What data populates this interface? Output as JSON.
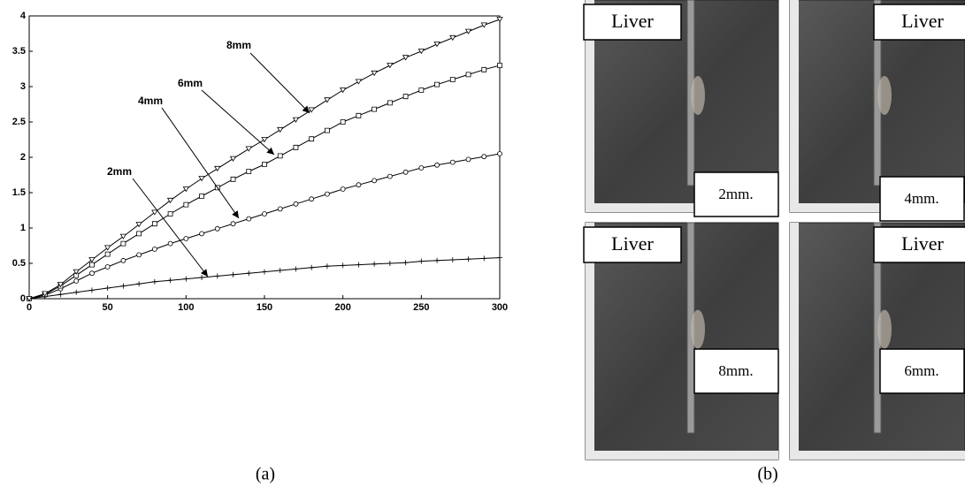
{
  "chart_data": {
    "type": "line",
    "x": [
      0,
      10,
      20,
      30,
      40,
      50,
      60,
      70,
      80,
      90,
      100,
      110,
      120,
      130,
      140,
      150,
      160,
      170,
      180,
      190,
      200,
      210,
      220,
      230,
      240,
      250,
      260,
      270,
      280,
      290,
      300
    ],
    "series": [
      {
        "name": "2mm",
        "color": "#000000",
        "marker": "plus",
        "values": [
          0,
          0.03,
          0.06,
          0.09,
          0.12,
          0.15,
          0.18,
          0.21,
          0.24,
          0.26,
          0.28,
          0.3,
          0.32,
          0.34,
          0.36,
          0.38,
          0.4,
          0.42,
          0.44,
          0.46,
          0.47,
          0.48,
          0.49,
          0.5,
          0.51,
          0.53,
          0.54,
          0.55,
          0.56,
          0.57,
          0.58
        ]
      },
      {
        "name": "4mm",
        "color": "#000000",
        "marker": "circle",
        "values": [
          0,
          0.05,
          0.14,
          0.25,
          0.36,
          0.45,
          0.54,
          0.62,
          0.7,
          0.78,
          0.85,
          0.92,
          0.99,
          1.06,
          1.13,
          1.2,
          1.27,
          1.34,
          1.41,
          1.48,
          1.55,
          1.61,
          1.67,
          1.73,
          1.79,
          1.85,
          1.89,
          1.93,
          1.97,
          2.01,
          2.05
        ]
      },
      {
        "name": "6mm",
        "color": "#000000",
        "marker": "square",
        "values": [
          0,
          0.06,
          0.18,
          0.33,
          0.48,
          0.63,
          0.78,
          0.92,
          1.06,
          1.2,
          1.33,
          1.45,
          1.57,
          1.69,
          1.8,
          1.9,
          2.02,
          2.14,
          2.26,
          2.38,
          2.5,
          2.59,
          2.68,
          2.77,
          2.86,
          2.95,
          3.03,
          3.1,
          3.17,
          3.24,
          3.3
        ]
      },
      {
        "name": "8mm",
        "color": "#000000",
        "marker": "triangle-down",
        "values": [
          0,
          0.07,
          0.2,
          0.38,
          0.55,
          0.72,
          0.88,
          1.05,
          1.22,
          1.39,
          1.55,
          1.7,
          1.84,
          1.98,
          2.12,
          2.25,
          2.39,
          2.53,
          2.67,
          2.81,
          2.95,
          3.07,
          3.19,
          3.3,
          3.41,
          3.5,
          3.6,
          3.69,
          3.78,
          3.87,
          3.95
        ]
      }
    ],
    "xlim": [
      0,
      300
    ],
    "ylim": [
      0,
      4
    ],
    "xticks": [
      0,
      50,
      100,
      150,
      200,
      250,
      300
    ],
    "yticks": [
      0,
      0.5,
      1,
      1.5,
      2,
      2.5,
      3,
      3.5,
      4
    ]
  },
  "photos": [
    {
      "organ": "Liver",
      "size": "2mm."
    },
    {
      "organ": "Liver",
      "size": "4mm."
    },
    {
      "organ": "Liver",
      "size": "8mm."
    },
    {
      "organ": "Liver",
      "size": "6mm."
    }
  ],
  "captions": [
    "(a)",
    "(b)"
  ]
}
